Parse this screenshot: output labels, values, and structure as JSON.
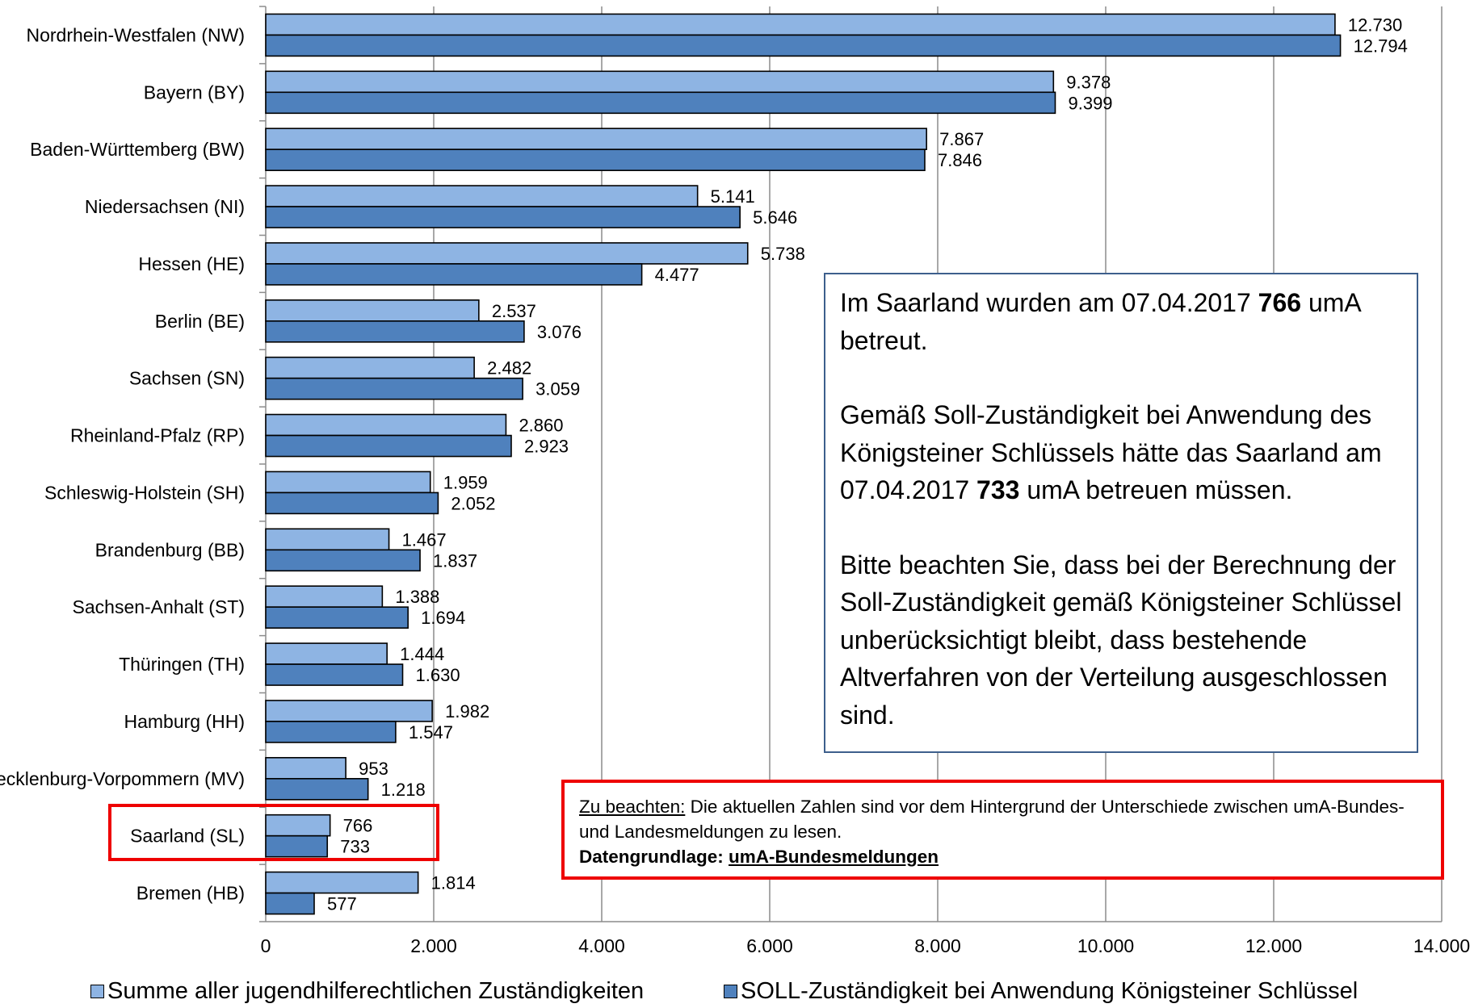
{
  "chart_data": {
    "type": "bar",
    "orientation": "horizontal",
    "categories": [
      "Nordrhein-Westfalen (NW)",
      "Bayern (BY)",
      "Baden-Württemberg (BW)",
      "Niedersachsen (NI)",
      "Hessen (HE)",
      "Berlin (BE)",
      "Sachsen (SN)",
      "Rheinland-Pfalz (RP)",
      "Schleswig-Holstein (SH)",
      "Brandenburg (BB)",
      "Sachsen-Anhalt (ST)",
      "Thüringen (TH)",
      "Hamburg (HH)",
      "Mecklenburg-Vorpommern (MV)",
      "Saarland (SL)",
      "Bremen (HB)"
    ],
    "series": [
      {
        "name": "Summe aller jugendhilferechtlichen Zuständigkeiten",
        "color": "#8eb4e3",
        "values": [
          12730,
          9378,
          7867,
          5141,
          5738,
          2537,
          2482,
          2860,
          1959,
          1467,
          1388,
          1444,
          1982,
          953,
          766,
          1814
        ],
        "labels": [
          "12.730",
          "9.378",
          "7.867",
          "5.141",
          "5.738",
          "2.537",
          "2.482",
          "2.860",
          "1.959",
          "1.467",
          "1.388",
          "1.444",
          "1.982",
          "953",
          "766",
          "1.814"
        ]
      },
      {
        "name": "SOLL-Zuständigkeit bei Anwendung Königsteiner Schlüssel",
        "color": "#4f81bd",
        "values": [
          12794,
          9399,
          7846,
          5646,
          4477,
          3076,
          3059,
          2923,
          2052,
          1837,
          1694,
          1630,
          1547,
          1218,
          733,
          577
        ],
        "labels": [
          "12.794",
          "9.399",
          "7.846",
          "5.646",
          "4.477",
          "3.076",
          "3.059",
          "2.923",
          "2.052",
          "1.837",
          "1.694",
          "1.630",
          "1.547",
          "1.218",
          "733",
          "577"
        ]
      }
    ],
    "xlim": [
      0,
      14000
    ],
    "xticks": [
      0,
      2000,
      4000,
      6000,
      8000,
      10000,
      12000,
      14000
    ],
    "xtick_labels": [
      "0",
      "2.000",
      "4.000",
      "6.000",
      "8.000",
      "10.000",
      "12.000",
      "14.000"
    ],
    "grid": "vertical",
    "legend_position": "bottom",
    "highlighted_category": "Saarland (SL)"
  },
  "legend": {
    "s1": "Summe aller jugendhilferechtlichen Zuständigkeiten",
    "s2": "SOLL-Zuständigkeit bei Anwendung Königsteiner Schlüssel"
  },
  "infobox": {
    "p1_pre": "Im Saarland wurden am 07.04.2017 ",
    "p1_bold": "766",
    "p1_post": " umA betreut.",
    "p2_pre": "Gemäß Soll-Zuständigkeit bei Anwendung des Königsteiner Schlüssels hätte das Saarland am 07.04.2017 ",
    "p2_bold": "733",
    "p2_post": " umA betreuen müssen.",
    "p3": "Bitte beachten Sie, dass bei der Berechnung der Soll-Zuständigkeit gemäß Königsteiner Schlüssel unberücksichtigt bleibt, dass bestehende Altverfahren von der Verteilung ausgeschlossen sind."
  },
  "note": {
    "label": "Zu beachten:",
    "text": " Die aktuellen Zahlen sind vor dem Hintergrund der Unterschiede zwischen umA-Bundes- und Landesmeldungen zu lesen.",
    "basis_label": "Datengrundlage: ",
    "basis_value": "umA-Bundesmeldungen"
  }
}
